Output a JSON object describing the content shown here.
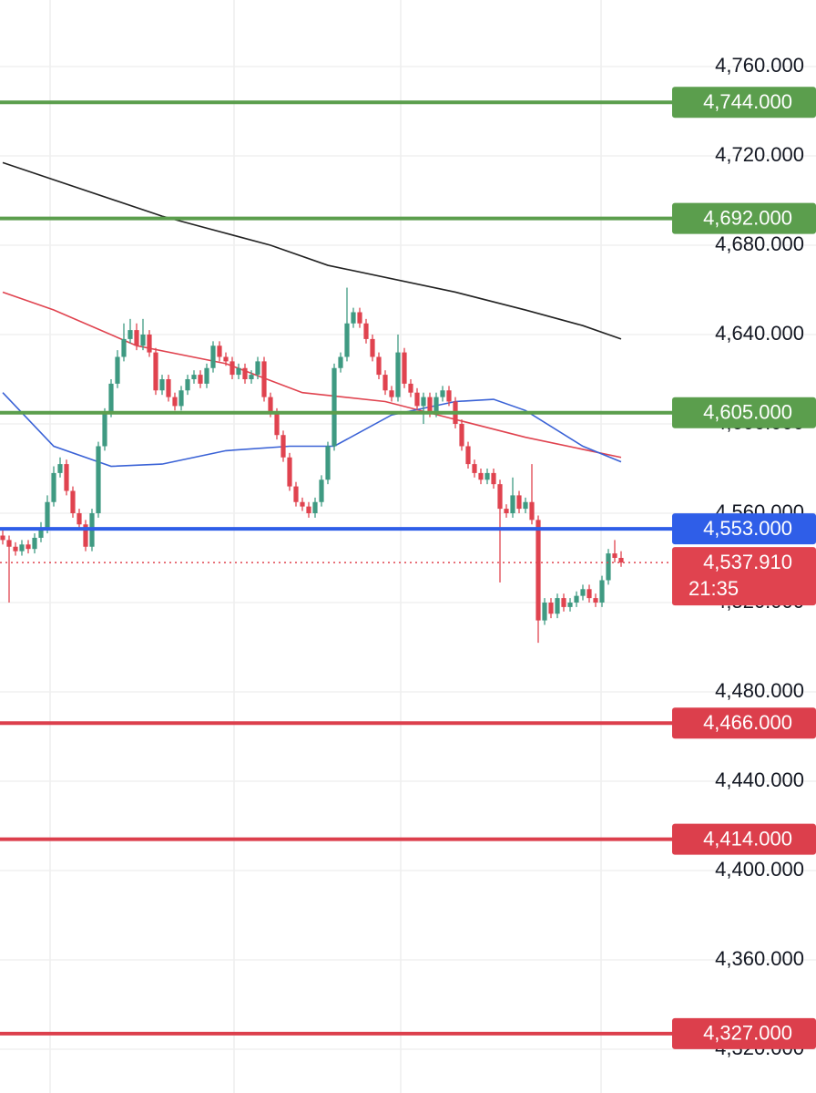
{
  "chart_data": {
    "type": "candlestick",
    "ylim": [
      4300.4,
      4789.8
    ],
    "yticks": [
      {
        "value": 4760,
        "label": "4,760.000"
      },
      {
        "value": 4720,
        "label": "4,720.000"
      },
      {
        "value": 4680,
        "label": "4,680.000"
      },
      {
        "value": 4640,
        "label": "4,640.000"
      },
      {
        "value": 4600,
        "label": "4,600.000"
      },
      {
        "value": 4560,
        "label": "4,560.000"
      },
      {
        "value": 4520,
        "label": "4,520.000"
      },
      {
        "value": 4480,
        "label": "4,480.000"
      },
      {
        "value": 4440,
        "label": "4,440.000"
      },
      {
        "value": 4400,
        "label": "4,400.000"
      },
      {
        "value": 4360,
        "label": "4,360.000"
      },
      {
        "value": 4320,
        "label": "4,320.000"
      }
    ],
    "grid": true,
    "up_color": "#3f9a82",
    "down_color": "#e0434f",
    "ohlc": [
      [
        4550,
        4553,
        4546,
        4548
      ],
      [
        4548,
        4550,
        4520,
        4545
      ],
      [
        4545,
        4547,
        4541,
        4543
      ],
      [
        4543,
        4548,
        4541,
        4546
      ],
      [
        4546,
        4548,
        4542,
        4544
      ],
      [
        4544,
        4551,
        4542,
        4549
      ],
      [
        4549,
        4556,
        4547,
        4553
      ],
      [
        4553,
        4568,
        4551,
        4565
      ],
      [
        4565,
        4581,
        4563,
        4578
      ],
      [
        4578,
        4585,
        4576,
        4582
      ],
      [
        4582,
        4584,
        4568,
        4570
      ],
      [
        4570,
        4572,
        4558,
        4560
      ],
      [
        4560,
        4562,
        4553,
        4555
      ],
      [
        4555,
        4557,
        4543,
        4545
      ],
      [
        4545,
        4562,
        4543,
        4560
      ],
      [
        4560,
        4592,
        4558,
        4590
      ],
      [
        4590,
        4607,
        4588,
        4605
      ],
      [
        4605,
        4620,
        4603,
        4618
      ],
      [
        4618,
        4633,
        4616,
        4630
      ],
      [
        4630,
        4645,
        4628,
        4638
      ],
      [
        4638,
        4647,
        4636,
        4642
      ],
      [
        4642,
        4645,
        4633,
        4635
      ],
      [
        4635,
        4647,
        4633,
        4640
      ],
      [
        4640,
        4642,
        4630,
        4632
      ],
      [
        4632,
        4634,
        4613,
        4615
      ],
      [
        4615,
        4622,
        4613,
        4620
      ],
      [
        4620,
        4622,
        4610,
        4612
      ],
      [
        4612,
        4614,
        4606,
        4608
      ],
      [
        4608,
        4617,
        4606,
        4615
      ],
      [
        4615,
        4622,
        4613,
        4620
      ],
      [
        4620,
        4624,
        4618,
        4622
      ],
      [
        4622,
        4624,
        4616,
        4618
      ],
      [
        4618,
        4627,
        4616,
        4625
      ],
      [
        4625,
        4637,
        4623,
        4635
      ],
      [
        4635,
        4637,
        4628,
        4630
      ],
      [
        4630,
        4632,
        4626,
        4628
      ],
      [
        4628,
        4630,
        4620,
        4622
      ],
      [
        4622,
        4627,
        4620,
        4625
      ],
      [
        4625,
        4627,
        4618,
        4620
      ],
      [
        4620,
        4624,
        4618,
        4622
      ],
      [
        4622,
        4630,
        4620,
        4628
      ],
      [
        4628,
        4630,
        4610,
        4612
      ],
      [
        4612,
        4614,
        4603,
        4605
      ],
      [
        4605,
        4607,
        4593,
        4595
      ],
      [
        4595,
        4597,
        4583,
        4585
      ],
      [
        4585,
        4587,
        4570,
        4572
      ],
      [
        4572,
        4574,
        4563,
        4565
      ],
      [
        4565,
        4567,
        4561,
        4563
      ],
      [
        4563,
        4565,
        4558,
        4560
      ],
      [
        4560,
        4567,
        4558,
        4565
      ],
      [
        4565,
        4577,
        4563,
        4575
      ],
      [
        4575,
        4592,
        4573,
        4590
      ],
      [
        4590,
        4627,
        4588,
        4625
      ],
      [
        4625,
        4632,
        4623,
        4630
      ],
      [
        4630,
        4661,
        4628,
        4645
      ],
      [
        4645,
        4652,
        4643,
        4650
      ],
      [
        4650,
        4652,
        4643,
        4645
      ],
      [
        4645,
        4647,
        4636,
        4638
      ],
      [
        4638,
        4640,
        4628,
        4630
      ],
      [
        4630,
        4632,
        4620,
        4622
      ],
      [
        4622,
        4624,
        4613,
        4615
      ],
      [
        4615,
        4617,
        4610,
        4612
      ],
      [
        4612,
        4640,
        4610,
        4632
      ],
      [
        4632,
        4634,
        4616,
        4618
      ],
      [
        4618,
        4620,
        4612,
        4614
      ],
      [
        4614,
        4616,
        4606,
        4608
      ],
      [
        4608,
        4614,
        4600,
        4612
      ],
      [
        4612,
        4614,
        4603,
        4605
      ],
      [
        4605,
        4614,
        4603,
        4612
      ],
      [
        4612,
        4617,
        4610,
        4615
      ],
      [
        4615,
        4617,
        4608,
        4610
      ],
      [
        4610,
        4612,
        4598,
        4600
      ],
      [
        4600,
        4602,
        4588,
        4590
      ],
      [
        4590,
        4592,
        4580,
        4582
      ],
      [
        4582,
        4584,
        4576,
        4578
      ],
      [
        4578,
        4580,
        4573,
        4575
      ],
      [
        4575,
        4580,
        4573,
        4578
      ],
      [
        4578,
        4580,
        4571,
        4573
      ],
      [
        4573,
        4575,
        4529,
        4562
      ],
      [
        4562,
        4564,
        4558,
        4560
      ],
      [
        4560,
        4576,
        4558,
        4568
      ],
      [
        4568,
        4570,
        4560,
        4562
      ],
      [
        4562,
        4567,
        4560,
        4565
      ],
      [
        4565,
        4582,
        4555,
        4557
      ],
      [
        4557,
        4559,
        4502,
        4512
      ],
      [
        4512,
        4522,
        4510,
        4520
      ],
      [
        4520,
        4522,
        4513,
        4515
      ],
      [
        4515,
        4524,
        4513,
        4522
      ],
      [
        4522,
        4524,
        4516,
        4518
      ],
      [
        4518,
        4522,
        4516,
        4520
      ],
      [
        4520,
        4525,
        4518,
        4523
      ],
      [
        4523,
        4528,
        4521,
        4526
      ],
      [
        4526,
        4528,
        4520,
        4522
      ],
      [
        4522,
        4524,
        4518,
        4520
      ],
      [
        4520,
        4532,
        4518,
        4530
      ],
      [
        4530,
        4544,
        4528,
        4542
      ],
      [
        4542,
        4548,
        4538,
        4540
      ],
      [
        4540,
        4543,
        4536,
        4537.91
      ]
    ],
    "lines": [
      {
        "color": "#222222",
        "x": [
          0,
          25,
          42,
          51,
          71,
          82,
          91,
          97
        ],
        "values": [
          4717,
          4693,
          4680,
          4671,
          4659,
          4651,
          4644,
          4638
        ]
      },
      {
        "color": "#e0434f",
        "x": [
          0,
          8,
          21,
          35,
          47,
          60,
          71,
          82,
          97
        ],
        "values": [
          4659,
          4651,
          4635,
          4627,
          4614,
          4610,
          4602,
          4594,
          4585
        ]
      },
      {
        "color": "#3a62d6",
        "x": [
          0,
          8,
          17,
          25,
          35,
          45,
          52,
          61,
          71,
          77,
          82,
          91,
          97
        ],
        "values": [
          4614,
          4590,
          4581,
          4582,
          4588,
          4590,
          4590,
          4604,
          4610,
          4611,
          4606,
          4590,
          4583
        ]
      }
    ],
    "levels": [
      {
        "value": 4744,
        "label": "4,744.000",
        "color": "#5b9e4d"
      },
      {
        "value": 4692,
        "label": "4,692.000",
        "color": "#5b9e4d"
      },
      {
        "value": 4605,
        "label": "4,605.000",
        "color": "#5b9e4d"
      },
      {
        "value": 4553,
        "label": "4,553.000",
        "color": "#2f5ee8"
      },
      {
        "value": 4466,
        "label": "4,466.000",
        "color": "#dc3f4c"
      },
      {
        "value": 4414,
        "label": "4,414.000",
        "color": "#dc3f4c"
      },
      {
        "value": 4327,
        "label": "4,327.000",
        "color": "#dc3f4c"
      }
    ],
    "last_price": {
      "value": 4537.91,
      "label": "4,537.910",
      "countdown": "21:35",
      "color": "#e0434f"
    }
  }
}
